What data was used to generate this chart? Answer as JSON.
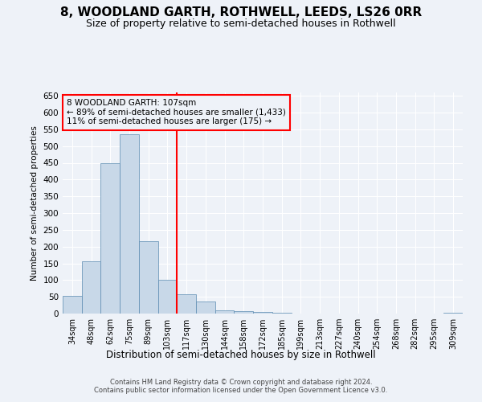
{
  "title": "8, WOODLAND GARTH, ROTHWELL, LEEDS, LS26 0RR",
  "subtitle": "Size of property relative to semi-detached houses in Rothwell",
  "xlabel": "Distribution of semi-detached houses by size in Rothwell",
  "ylabel": "Number of semi-detached properties",
  "footer": "Contains HM Land Registry data © Crown copyright and database right 2024.\nContains public sector information licensed under the Open Government Licence v3.0.",
  "categories": [
    "34sqm",
    "48sqm",
    "62sqm",
    "75sqm",
    "89sqm",
    "103sqm",
    "117sqm",
    "130sqm",
    "144sqm",
    "158sqm",
    "172sqm",
    "185sqm",
    "199sqm",
    "213sqm",
    "227sqm",
    "240sqm",
    "254sqm",
    "268sqm",
    "282sqm",
    "295sqm",
    "309sqm"
  ],
  "values": [
    52,
    155,
    450,
    535,
    215,
    100,
    58,
    35,
    10,
    7,
    5,
    2,
    1,
    1,
    1,
    0,
    0,
    0,
    0,
    0,
    2
  ],
  "bar_color": "#c8d8e8",
  "bar_edge_color": "#5a8ab0",
  "vline_x": 5.5,
  "vline_color": "red",
  "annotation_text": "8 WOODLAND GARTH: 107sqm\n← 89% of semi-detached houses are smaller (1,433)\n11% of semi-detached houses are larger (175) →",
  "annotation_box_color": "red",
  "ylim": [
    0,
    660
  ],
  "yticks": [
    0,
    50,
    100,
    150,
    200,
    250,
    300,
    350,
    400,
    450,
    500,
    550,
    600,
    650
  ],
  "bg_color": "#eef2f8",
  "grid_color": "white",
  "title_fontsize": 11,
  "subtitle_fontsize": 9
}
